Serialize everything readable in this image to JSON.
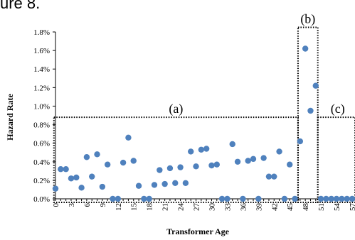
{
  "page_fragment": "ure 8.",
  "chart_data": {
    "type": "scatter",
    "xlabel": "Transformer Age",
    "ylabel": "Hazard Rate",
    "xlim": [
      0,
      57
    ],
    "ylim": [
      0,
      1.8
    ],
    "y_unit": "%",
    "x_tick_labels": [
      "0",
      "3",
      "6",
      "9",
      "12",
      "15",
      "18",
      "21",
      "24",
      "27",
      "30",
      "33",
      "36",
      "39",
      "42",
      "45",
      "48",
      "51",
      "54",
      "57"
    ],
    "y_tick_labels": [
      "0.0%",
      "0.2%",
      "0.4%",
      "0.6%",
      "0.8%",
      "1.0%",
      "1.2%",
      "1.4%",
      "1.6%",
      "1.8%"
    ],
    "grid": false,
    "marker_color": "#4F81BD",
    "points": [
      {
        "x": 0,
        "y": 0.11
      },
      {
        "x": 1,
        "y": 0.32
      },
      {
        "x": 2,
        "y": 0.32
      },
      {
        "x": 3,
        "y": 0.22
      },
      {
        "x": 4,
        "y": 0.23
      },
      {
        "x": 5,
        "y": 0.12
      },
      {
        "x": 6,
        "y": 0.45
      },
      {
        "x": 7,
        "y": 0.24
      },
      {
        "x": 8,
        "y": 0.48
      },
      {
        "x": 9,
        "y": 0.13
      },
      {
        "x": 10,
        "y": 0.37
      },
      {
        "x": 11,
        "y": 0.0
      },
      {
        "x": 12,
        "y": 0.0
      },
      {
        "x": 13,
        "y": 0.39
      },
      {
        "x": 14,
        "y": 0.66
      },
      {
        "x": 15,
        "y": 0.41
      },
      {
        "x": 16,
        "y": 0.14
      },
      {
        "x": 17,
        "y": 0.0
      },
      {
        "x": 18,
        "y": 0.0
      },
      {
        "x": 19,
        "y": 0.15
      },
      {
        "x": 20,
        "y": 0.31
      },
      {
        "x": 21,
        "y": 0.16
      },
      {
        "x": 22,
        "y": 0.33
      },
      {
        "x": 23,
        "y": 0.17
      },
      {
        "x": 24,
        "y": 0.34
      },
      {
        "x": 25,
        "y": 0.17
      },
      {
        "x": 26,
        "y": 0.51
      },
      {
        "x": 27,
        "y": 0.35
      },
      {
        "x": 28,
        "y": 0.53
      },
      {
        "x": 29,
        "y": 0.54
      },
      {
        "x": 30,
        "y": 0.36
      },
      {
        "x": 31,
        "y": 0.37
      },
      {
        "x": 32,
        "y": 0.0
      },
      {
        "x": 33,
        "y": 0.0
      },
      {
        "x": 34,
        "y": 0.59
      },
      {
        "x": 35,
        "y": 0.4
      },
      {
        "x": 36,
        "y": 0.0
      },
      {
        "x": 37,
        "y": 0.41
      },
      {
        "x": 38,
        "y": 0.43
      },
      {
        "x": 39,
        "y": 0.0
      },
      {
        "x": 40,
        "y": 0.44
      },
      {
        "x": 41,
        "y": 0.24
      },
      {
        "x": 42,
        "y": 0.24
      },
      {
        "x": 43,
        "y": 0.51
      },
      {
        "x": 44,
        "y": 0.0
      },
      {
        "x": 45,
        "y": 0.37
      },
      {
        "x": 46,
        "y": 0.0
      },
      {
        "x": 47,
        "y": 0.62
      },
      {
        "x": 48,
        "y": 1.62
      },
      {
        "x": 49,
        "y": 0.95
      },
      {
        "x": 50,
        "y": 1.22
      },
      {
        "x": 51,
        "y": 0.0
      },
      {
        "x": 52,
        "y": 0.0
      },
      {
        "x": 53,
        "y": 0.0
      },
      {
        "x": 54,
        "y": 0.0
      },
      {
        "x": 55,
        "y": 0.0
      },
      {
        "x": 56,
        "y": 0.0
      },
      {
        "x": 57,
        "y": 0.0
      }
    ],
    "regions": [
      {
        "label": "(a)",
        "x_start": -0.3,
        "x_end": 46.6,
        "y_top": 0.88
      },
      {
        "label": "(b)",
        "x_start": 46.6,
        "x_end": 50.4,
        "y_top": 1.85
      },
      {
        "label": "(c)",
        "x_start": 50.4,
        "x_end": 58.5,
        "y_top": 0.88
      }
    ]
  }
}
